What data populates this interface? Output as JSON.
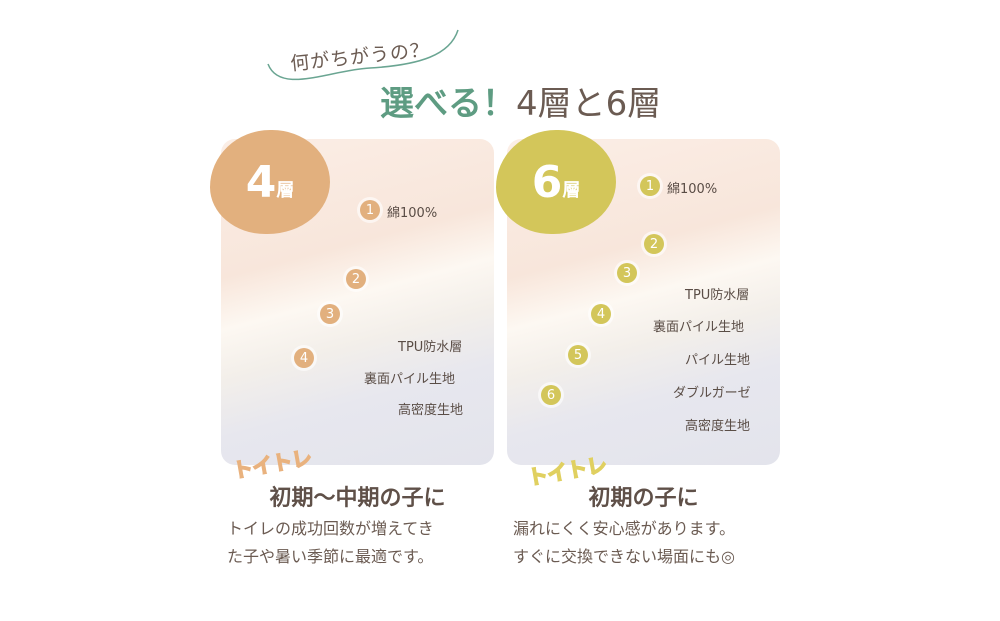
{
  "header": {
    "subtitle": "何がちがうの？",
    "title_accent": "選べる！",
    "title_rest": "4層と6層"
  },
  "colors": {
    "four": "#e2b07e",
    "six": "#d3c65a",
    "accent": "#5e9c82",
    "text": "#6b5b52"
  },
  "cards": [
    {
      "badge_num": "4",
      "badge_unit": "層",
      "tag": "トイトレ",
      "heading": "初期〜中期の子に",
      "desc": [
        "トイレの成功回数が増えてき",
        "た子や暑い季節に最適です。"
      ],
      "layers": [
        {
          "n": "1",
          "label": "綿100%"
        },
        {
          "n": "2",
          "label": "TPU防水層"
        },
        {
          "n": "3",
          "label": "裏面パイル生地"
        },
        {
          "n": "4",
          "label": "高密度生地"
        }
      ]
    },
    {
      "badge_num": "6",
      "badge_unit": "層",
      "tag": "トイトレ",
      "heading": "初期の子に",
      "desc": [
        "漏れにくく安心感があります。",
        "すぐに交換できない場面にも◎"
      ],
      "layers": [
        {
          "n": "1",
          "label": "綿100%"
        },
        {
          "n": "2",
          "label": "TPU防水層"
        },
        {
          "n": "3",
          "label": "裏面パイル生地"
        },
        {
          "n": "4",
          "label": "パイル生地"
        },
        {
          "n": "5",
          "label": "ダブルガーゼ"
        },
        {
          "n": "6",
          "label": "高密度生地"
        }
      ]
    }
  ]
}
